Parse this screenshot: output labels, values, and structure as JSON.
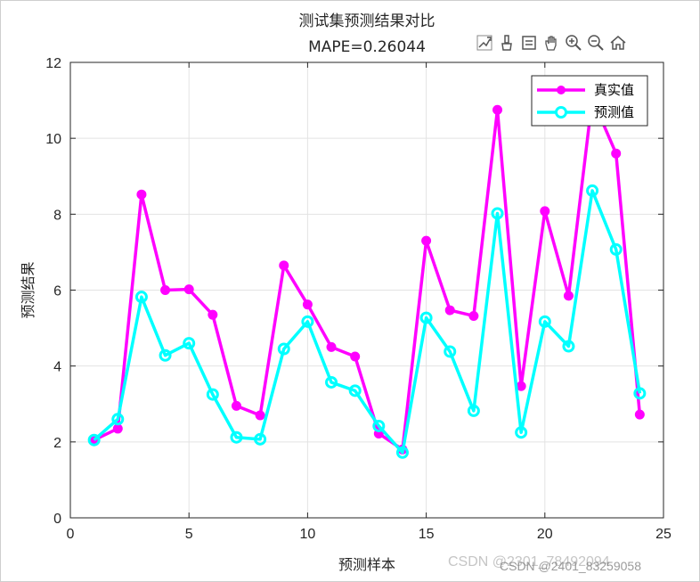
{
  "chart_data": {
    "type": "line",
    "title": "测试集预测结果对比",
    "subtitle": "MAPE=0.26044",
    "xlabel": "预测样本",
    "ylabel": "预测结果",
    "xlim": [
      0,
      25
    ],
    "ylim": [
      0,
      12
    ],
    "xticks": [
      0,
      5,
      10,
      15,
      20,
      25
    ],
    "yticks": [
      0,
      2,
      4,
      6,
      8,
      10,
      12
    ],
    "grid": true,
    "legend_position": "top-right",
    "x": [
      1,
      2,
      3,
      4,
      5,
      6,
      7,
      8,
      9,
      10,
      11,
      12,
      13,
      14,
      15,
      16,
      17,
      18,
      19,
      20,
      21,
      22,
      23,
      24
    ],
    "series": [
      {
        "name": "真实值",
        "color": "#ff00ff",
        "marker": "filled-circle",
        "values": [
          2.05,
          2.35,
          8.52,
          6.0,
          6.02,
          5.35,
          2.95,
          2.7,
          6.65,
          5.62,
          4.5,
          4.25,
          2.22,
          1.8,
          7.3,
          5.47,
          5.32,
          10.75,
          3.47,
          8.08,
          5.85,
          11.05,
          9.6,
          2.72
        ]
      },
      {
        "name": "预测值",
        "color": "#00ffff",
        "marker": "open-circle",
        "values": [
          2.05,
          2.6,
          5.82,
          4.28,
          4.6,
          3.25,
          2.12,
          2.07,
          4.45,
          5.17,
          3.57,
          3.35,
          2.42,
          1.72,
          5.27,
          4.38,
          2.82,
          8.02,
          2.25,
          5.17,
          4.52,
          8.62,
          7.07,
          3.28
        ]
      }
    ]
  },
  "toolbar": {
    "icons": [
      "export-icon",
      "brush-icon",
      "data-tips-icon",
      "pan-icon",
      "zoom-in-icon",
      "zoom-out-icon",
      "home-icon"
    ]
  },
  "watermark": {
    "text1": "CSDN @2301_78492094",
    "text2": "CSDN @2401_83259058"
  }
}
